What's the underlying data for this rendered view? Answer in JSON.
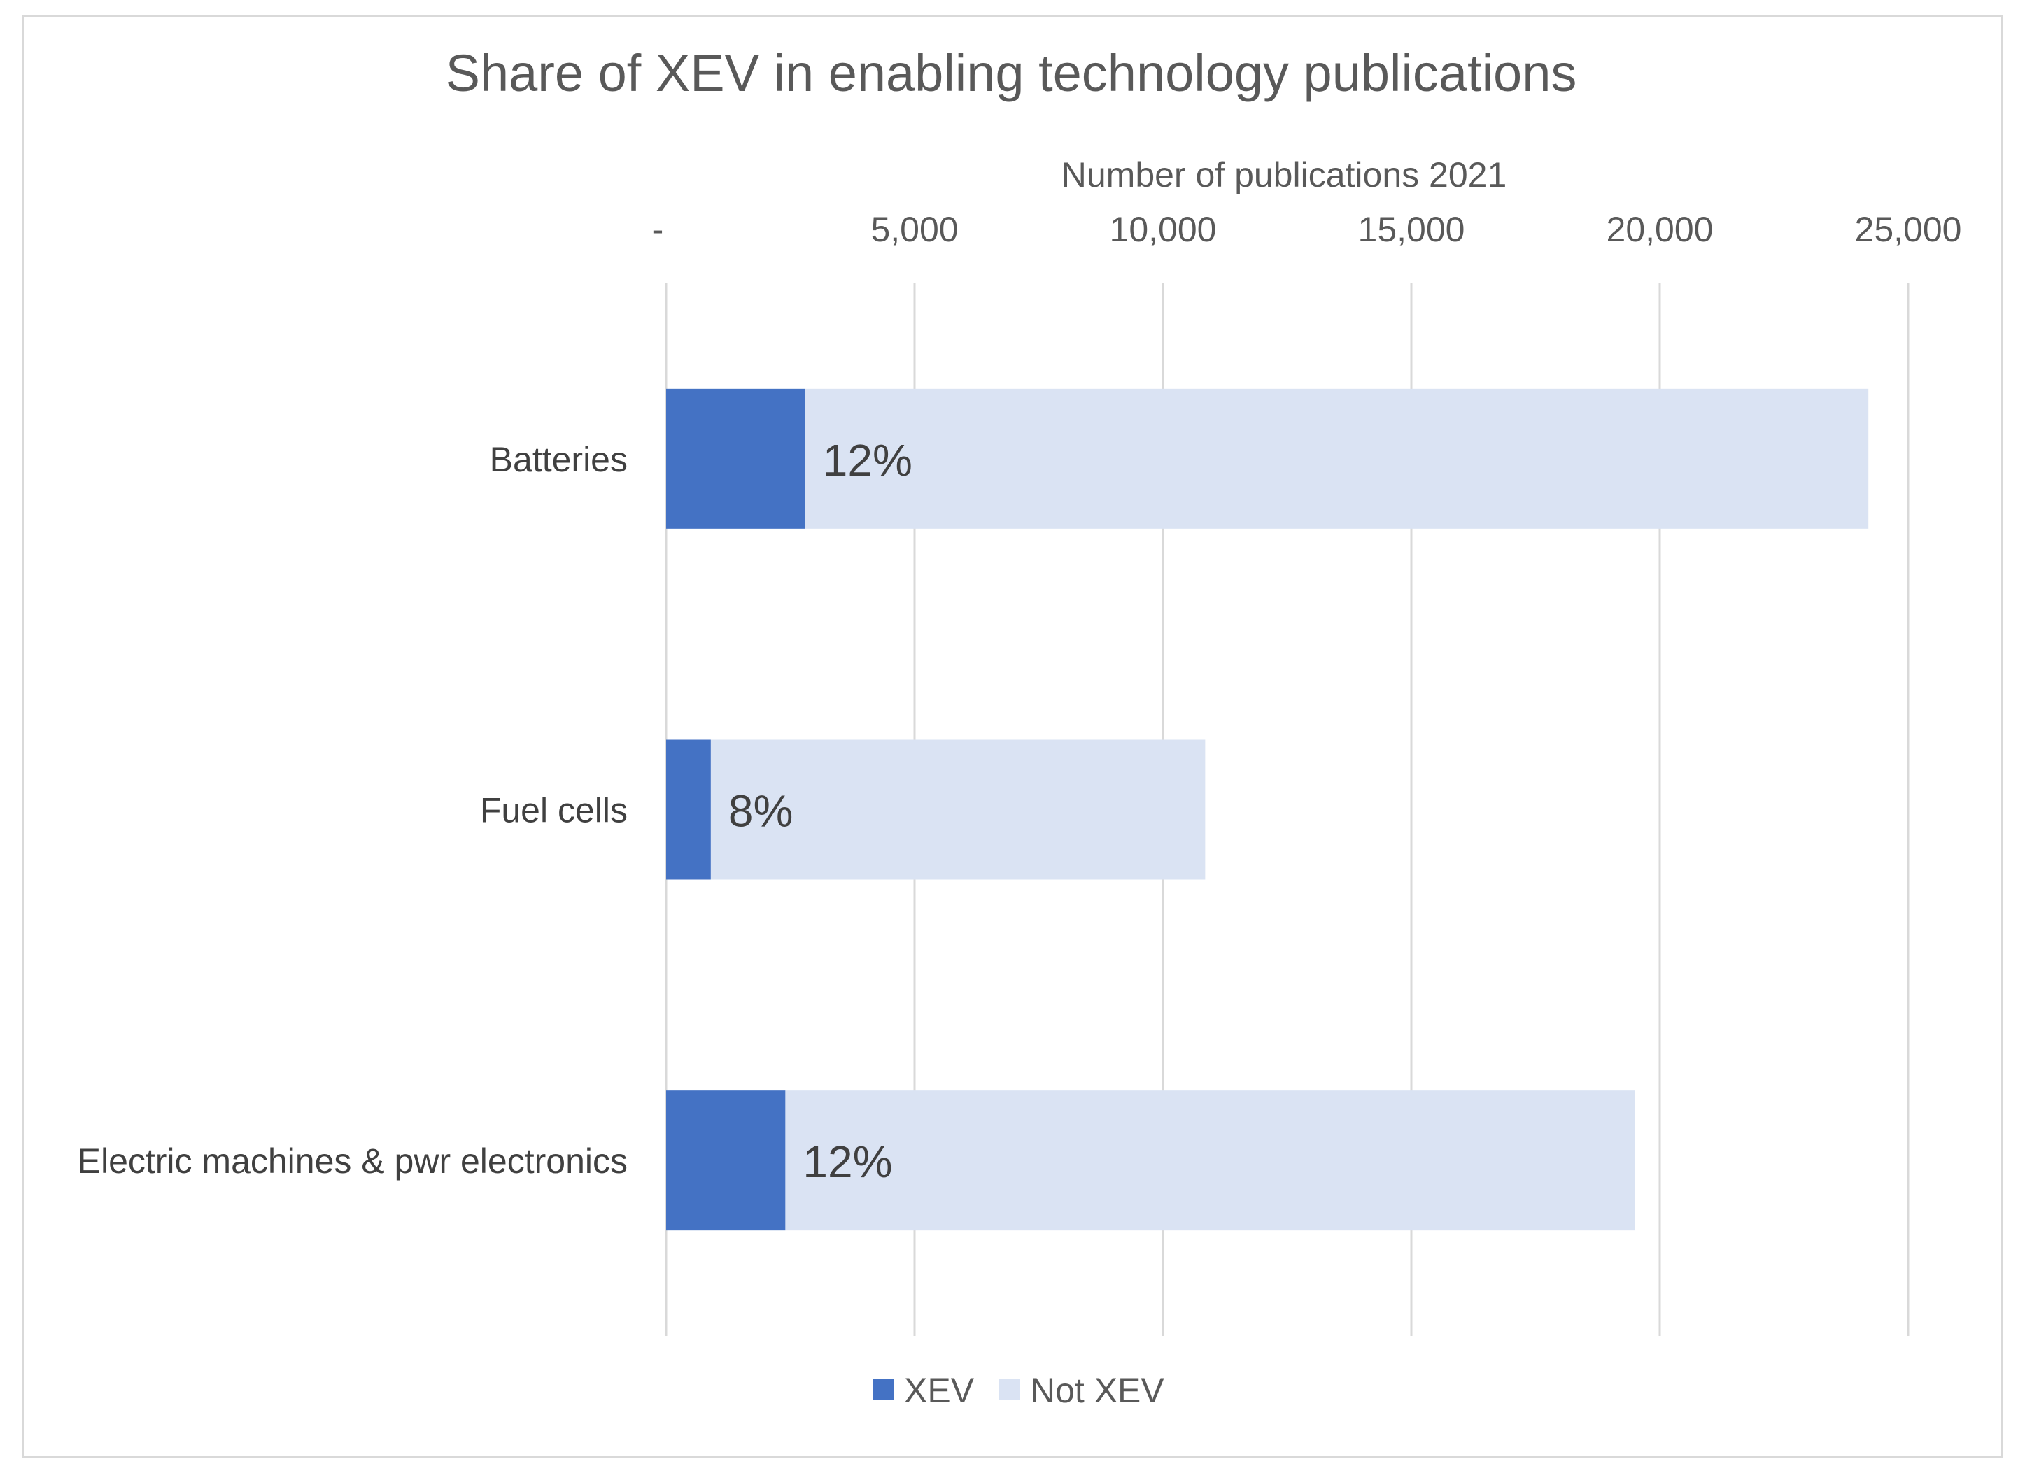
{
  "chart_data": {
    "type": "bar",
    "orientation": "horizontal",
    "stacked": true,
    "title": "Share of XEV in enabling technology publications",
    "xlabel": "Number of publications 2021",
    "ylabel": "",
    "xlim": [
      0,
      25000
    ],
    "x_ticks": [
      0,
      5000,
      10000,
      15000,
      20000,
      25000
    ],
    "x_tick_labels": [
      "-",
      "5,000",
      "10,000",
      "15,000",
      "20,000",
      "25,000"
    ],
    "axis_position": "top",
    "grid": true,
    "categories": [
      "Batteries",
      "Fuel cells",
      "Electric machines & pwr electronics"
    ],
    "series": [
      {
        "name": "XEV",
        "color": "#4472c4",
        "values": [
          2800,
          900,
          2400
        ]
      },
      {
        "name": "Not XEV",
        "color": "#dae3f3",
        "values": [
          21400,
          9950,
          17100
        ]
      }
    ],
    "data_labels": [
      "12%",
      "8%",
      "12%"
    ],
    "legend": "bottom"
  }
}
